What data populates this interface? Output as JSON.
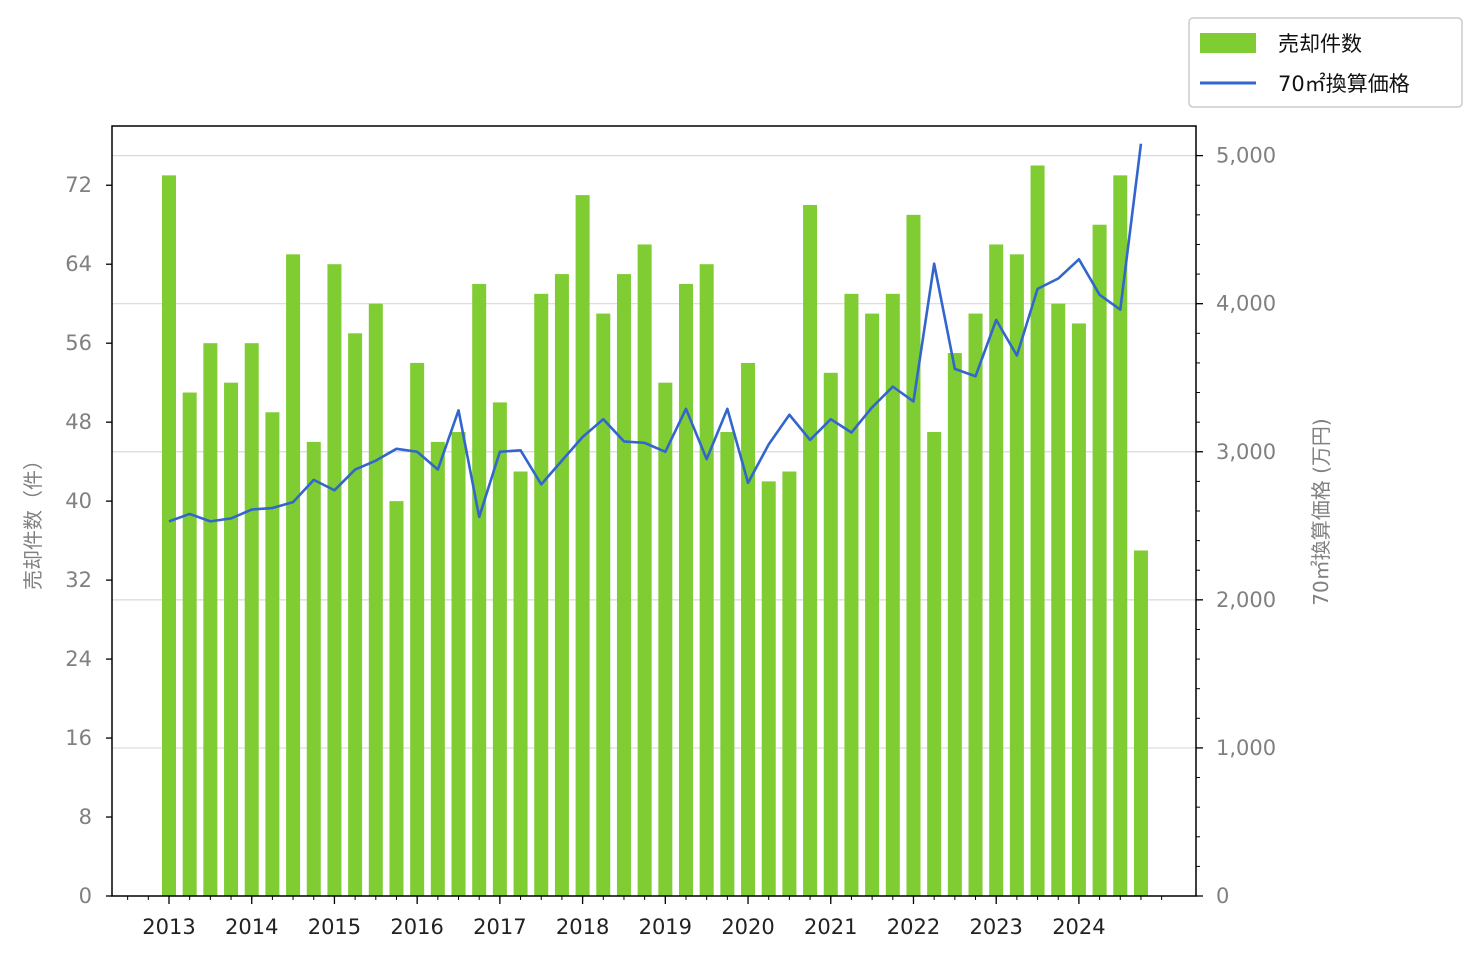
{
  "chart_data": {
    "type": "bar+line",
    "title": "",
    "ylabel_left": "売却件数（件）",
    "ylabel_right": "70㎡換算価格 (万円)",
    "ylim_left": [
      0,
      78
    ],
    "ylim_right": [
      0,
      5200
    ],
    "left_ticks": [
      0,
      8,
      16,
      24,
      32,
      40,
      48,
      56,
      64,
      72
    ],
    "left_tick_labels": [
      "0",
      "8",
      "16",
      "24",
      "32",
      "40",
      "48",
      "56",
      "64",
      "72"
    ],
    "right_ticks": [
      0,
      1000,
      2000,
      3000,
      4000,
      5000
    ],
    "right_tick_labels": [
      "0",
      "1,000",
      "2,000",
      "3,000",
      "4,000",
      "5,000"
    ],
    "x_tick_labels": [
      "2013",
      "2014",
      "2015",
      "2016",
      "2017",
      "2018",
      "2019",
      "2020",
      "2021",
      "2022",
      "2023",
      "2024"
    ],
    "grid": "horizontal, right axis",
    "legend_position": "top-right, outside plot",
    "periods": [
      "2013Q1",
      "2013Q2",
      "2013Q3",
      "2013Q4",
      "2014Q1",
      "2014Q2",
      "2014Q3",
      "2014Q4",
      "2015Q1",
      "2015Q2",
      "2015Q3",
      "2015Q4",
      "2016Q1",
      "2016Q2",
      "2016Q3",
      "2016Q4",
      "2017Q1",
      "2017Q2",
      "2017Q3",
      "2017Q4",
      "2018Q1",
      "2018Q2",
      "2018Q3",
      "2018Q4",
      "2019Q1",
      "2019Q2",
      "2019Q3",
      "2019Q4",
      "2020Q1",
      "2020Q2",
      "2020Q3",
      "2020Q4",
      "2021Q1",
      "2021Q2",
      "2021Q3",
      "2021Q4",
      "2022Q1",
      "2022Q2",
      "2022Q3",
      "2022Q4",
      "2023Q1",
      "2023Q2",
      "2023Q3",
      "2023Q4",
      "2024Q1",
      "2024Q2",
      "2024Q3",
      "2024Q4"
    ],
    "series": [
      {
        "name": "売却件数",
        "type": "bar",
        "axis": "left",
        "color": "#7fcc33",
        "values": [
          73,
          51,
          56,
          52,
          56,
          49,
          65,
          46,
          64,
          57,
          60,
          40,
          54,
          46,
          47,
          62,
          50,
          43,
          61,
          63,
          71,
          59,
          63,
          66,
          52,
          62,
          64,
          47,
          54,
          42,
          43,
          70,
          53,
          61,
          59,
          61,
          69,
          47,
          55,
          59,
          66,
          65,
          74,
          60,
          58,
          68,
          73,
          35
        ]
      },
      {
        "name": "70㎡換算価格",
        "type": "line",
        "axis": "right",
        "color": "#3366cc",
        "values": [
          2530,
          2580,
          2530,
          2550,
          2610,
          2620,
          2660,
          2810,
          2740,
          2880,
          2940,
          3020,
          3000,
          2880,
          3280,
          2560,
          3000,
          3010,
          2780,
          2940,
          3100,
          3220,
          3070,
          3060,
          3000,
          3290,
          2950,
          3290,
          2790,
          3050,
          3250,
          3080,
          3220,
          3130,
          3300,
          3440,
          3340,
          4270,
          3560,
          3510,
          3890,
          3650,
          4100,
          4170,
          4300,
          4060,
          3960,
          5080
        ]
      }
    ]
  }
}
